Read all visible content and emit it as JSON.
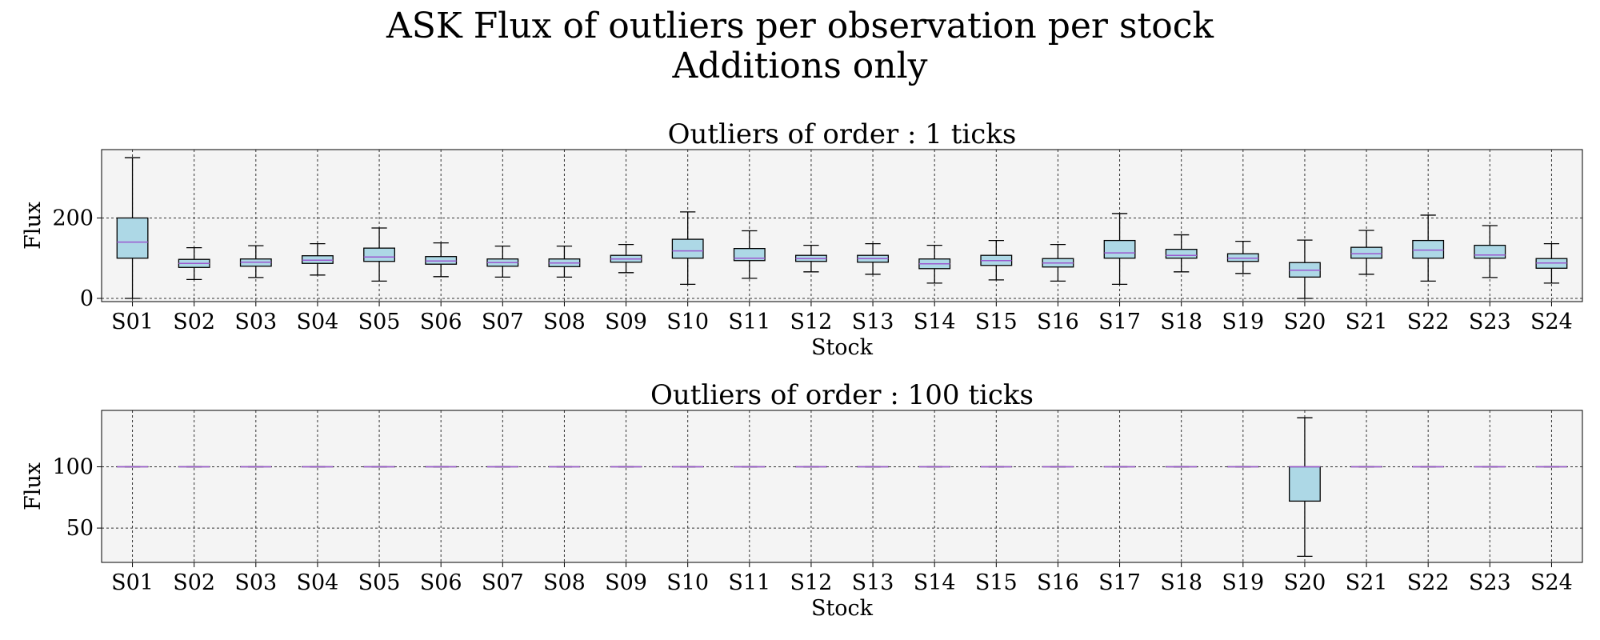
{
  "suptitle": {
    "line1": "ASK Flux of outliers per observation per stock",
    "line2": "Additions only"
  },
  "style": {
    "plot_background": "#f4f4f4",
    "box_fill": "#add8e6",
    "median_color": "#9b59d0",
    "grid": "dashed"
  },
  "chart_data": [
    {
      "type": "boxplot",
      "title": "Outliers of order : 1 ticks",
      "xlabel": "Stock",
      "ylabel": "Flux",
      "ylim": [
        -8,
        370
      ],
      "yticks": [
        0,
        200
      ],
      "grid": true,
      "categories": [
        "S01",
        "S02",
        "S03",
        "S04",
        "S05",
        "S06",
        "S07",
        "S08",
        "S09",
        "S10",
        "S11",
        "S12",
        "S13",
        "S14",
        "S15",
        "S16",
        "S17",
        "S18",
        "S19",
        "S20",
        "S21",
        "S22",
        "S23",
        "S24"
      ],
      "boxes": [
        {
          "whislo": 0,
          "q1": 100,
          "med": 140,
          "q3": 200,
          "whishi": 350
        },
        {
          "whislo": 47,
          "q1": 77,
          "med": 87,
          "q3": 97,
          "whishi": 126
        },
        {
          "whislo": 52,
          "q1": 80,
          "med": 90,
          "q3": 98,
          "whishi": 131
        },
        {
          "whislo": 58,
          "q1": 87,
          "med": 95,
          "q3": 106,
          "whishi": 136
        },
        {
          "whislo": 43,
          "q1": 92,
          "med": 103,
          "q3": 125,
          "whishi": 175
        },
        {
          "whislo": 54,
          "q1": 85,
          "med": 93,
          "q3": 104,
          "whishi": 138
        },
        {
          "whislo": 53,
          "q1": 80,
          "med": 89,
          "q3": 98,
          "whishi": 130
        },
        {
          "whislo": 53,
          "q1": 79,
          "med": 88,
          "q3": 98,
          "whishi": 130
        },
        {
          "whislo": 64,
          "q1": 90,
          "med": 98,
          "q3": 107,
          "whishi": 134
        },
        {
          "whislo": 35,
          "q1": 100,
          "med": 118,
          "q3": 147,
          "whishi": 215
        },
        {
          "whislo": 50,
          "q1": 94,
          "med": 100,
          "q3": 124,
          "whishi": 168
        },
        {
          "whislo": 66,
          "q1": 92,
          "med": 99,
          "q3": 107,
          "whishi": 132
        },
        {
          "whislo": 60,
          "q1": 90,
          "med": 99,
          "q3": 107,
          "whishi": 136
        },
        {
          "whislo": 38,
          "q1": 74,
          "med": 86,
          "q3": 98,
          "whishi": 132
        },
        {
          "whislo": 46,
          "q1": 82,
          "med": 94,
          "q3": 107,
          "whishi": 144
        },
        {
          "whislo": 43,
          "q1": 78,
          "med": 88,
          "q3": 99,
          "whishi": 134
        },
        {
          "whislo": 35,
          "q1": 100,
          "med": 113,
          "q3": 144,
          "whishi": 211
        },
        {
          "whislo": 66,
          "q1": 100,
          "med": 107,
          "q3": 122,
          "whishi": 158
        },
        {
          "whislo": 62,
          "q1": 92,
          "med": 100,
          "q3": 111,
          "whishi": 142
        },
        {
          "whislo": 0,
          "q1": 53,
          "med": 70,
          "q3": 89,
          "whishi": 145
        },
        {
          "whislo": 60,
          "q1": 100,
          "med": 111,
          "q3": 127,
          "whishi": 169
        },
        {
          "whislo": 43,
          "q1": 100,
          "med": 120,
          "q3": 144,
          "whishi": 207
        },
        {
          "whislo": 52,
          "q1": 100,
          "med": 108,
          "q3": 132,
          "whishi": 181
        },
        {
          "whislo": 38,
          "q1": 75,
          "med": 88,
          "q3": 99,
          "whishi": 136
        }
      ]
    },
    {
      "type": "boxplot",
      "title": "Outliers of order : 100 ticks",
      "xlabel": "Stock",
      "ylabel": "Flux",
      "ylim": [
        22,
        146
      ],
      "yticks": [
        50,
        100
      ],
      "grid": true,
      "categories": [
        "S01",
        "S02",
        "S03",
        "S04",
        "S05",
        "S06",
        "S07",
        "S08",
        "S09",
        "S10",
        "S11",
        "S12",
        "S13",
        "S14",
        "S15",
        "S16",
        "S17",
        "S18",
        "S19",
        "S20",
        "S21",
        "S22",
        "S23",
        "S24"
      ],
      "boxes": [
        {
          "whislo": 100,
          "q1": 100,
          "med": 100,
          "q3": 100,
          "whishi": 100
        },
        {
          "whislo": 100,
          "q1": 100,
          "med": 100,
          "q3": 100,
          "whishi": 100
        },
        {
          "whislo": 100,
          "q1": 100,
          "med": 100,
          "q3": 100,
          "whishi": 100
        },
        {
          "whislo": 100,
          "q1": 100,
          "med": 100,
          "q3": 100,
          "whishi": 100
        },
        {
          "whislo": 100,
          "q1": 100,
          "med": 100,
          "q3": 100,
          "whishi": 100
        },
        {
          "whislo": 100,
          "q1": 100,
          "med": 100,
          "q3": 100,
          "whishi": 100
        },
        {
          "whislo": 100,
          "q1": 100,
          "med": 100,
          "q3": 100,
          "whishi": 100
        },
        {
          "whislo": 100,
          "q1": 100,
          "med": 100,
          "q3": 100,
          "whishi": 100
        },
        {
          "whislo": 100,
          "q1": 100,
          "med": 100,
          "q3": 100,
          "whishi": 100
        },
        {
          "whislo": 100,
          "q1": 100,
          "med": 100,
          "q3": 100,
          "whishi": 100
        },
        {
          "whislo": 100,
          "q1": 100,
          "med": 100,
          "q3": 100,
          "whishi": 100
        },
        {
          "whislo": 100,
          "q1": 100,
          "med": 100,
          "q3": 100,
          "whishi": 100
        },
        {
          "whislo": 100,
          "q1": 100,
          "med": 100,
          "q3": 100,
          "whishi": 100
        },
        {
          "whislo": 100,
          "q1": 100,
          "med": 100,
          "q3": 100,
          "whishi": 100
        },
        {
          "whislo": 100,
          "q1": 100,
          "med": 100,
          "q3": 100,
          "whishi": 100
        },
        {
          "whislo": 100,
          "q1": 100,
          "med": 100,
          "q3": 100,
          "whishi": 100
        },
        {
          "whislo": 100,
          "q1": 100,
          "med": 100,
          "q3": 100,
          "whishi": 100
        },
        {
          "whislo": 100,
          "q1": 100,
          "med": 100,
          "q3": 100,
          "whishi": 100
        },
        {
          "whislo": 100,
          "q1": 100,
          "med": 100,
          "q3": 100,
          "whishi": 100
        },
        {
          "whislo": 27,
          "q1": 72,
          "med": 100,
          "q3": 100,
          "whishi": 140
        },
        {
          "whislo": 100,
          "q1": 100,
          "med": 100,
          "q3": 100,
          "whishi": 100
        },
        {
          "whislo": 100,
          "q1": 100,
          "med": 100,
          "q3": 100,
          "whishi": 100
        },
        {
          "whislo": 100,
          "q1": 100,
          "med": 100,
          "q3": 100,
          "whishi": 100
        },
        {
          "whislo": 100,
          "q1": 100,
          "med": 100,
          "q3": 100,
          "whishi": 100
        }
      ]
    }
  ]
}
